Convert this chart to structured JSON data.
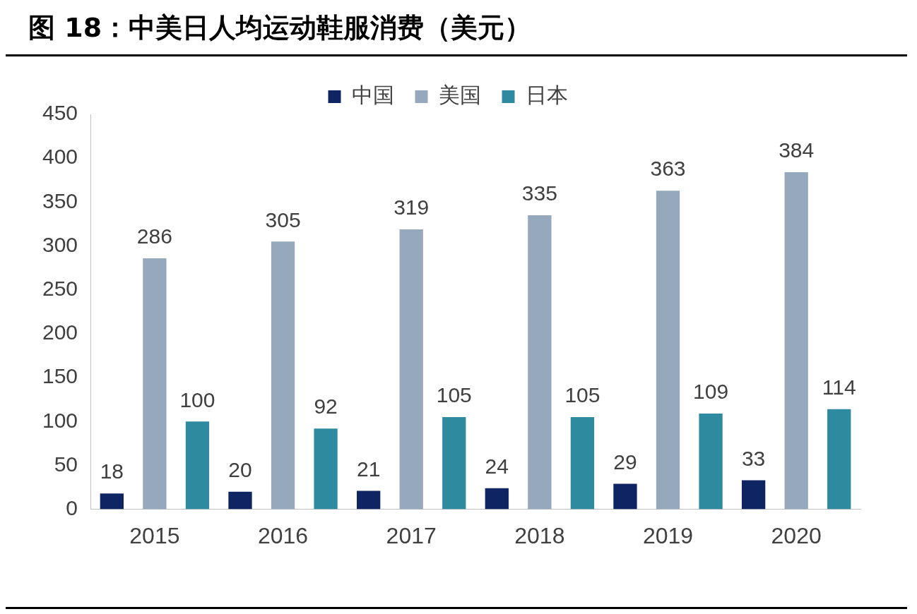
{
  "chart_data": {
    "type": "bar",
    "title": "图 18：中美日人均运动鞋服消费（美元）",
    "categories": [
      "2015",
      "2016",
      "2017",
      "2018",
      "2019",
      "2020"
    ],
    "series": [
      {
        "name": "中国",
        "color": "#0f2463",
        "values": [
          18,
          20,
          21,
          24,
          29,
          33
        ]
      },
      {
        "name": "美国",
        "color": "#95a8bc",
        "values": [
          286,
          305,
          319,
          335,
          363,
          384
        ]
      },
      {
        "name": "日本",
        "color": "#2e8b9f",
        "values": [
          100,
          92,
          105,
          105,
          109,
          114
        ]
      }
    ],
    "ylim": [
      0,
      450
    ],
    "yticks": [
      0,
      50,
      100,
      150,
      200,
      250,
      300,
      350,
      400,
      450
    ],
    "grid": false,
    "legend": "top",
    "data_labels": true
  }
}
